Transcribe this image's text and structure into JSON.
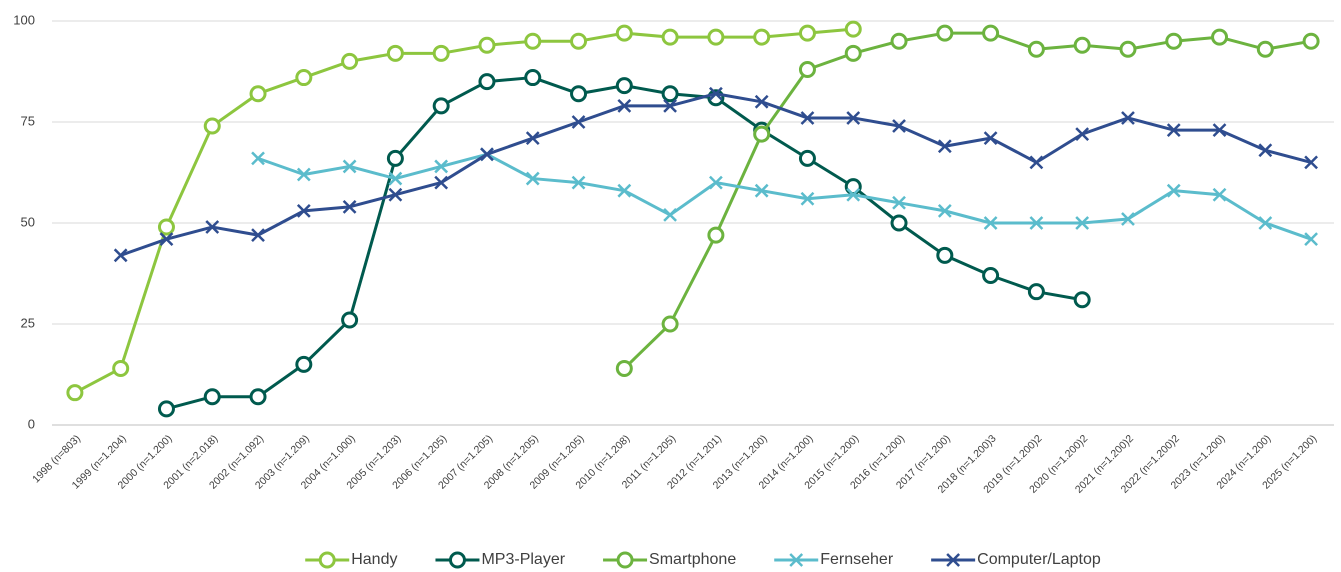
{
  "chart_data": {
    "type": "line",
    "categories": [
      "1998 (n=803)",
      "1999 (n=1.204)",
      "2000 (n=1.200)",
      "2001 (n=2.018)",
      "2002 (n=1.092)",
      "2003 (n=1.209)",
      "2004 (n=1.000)",
      "2005 (n=1.203)",
      "2006 (n=1.205)",
      "2007 (n=1.205)",
      "2008 (n=1.205)",
      "2009 (n=1.205)",
      "2010 (n=1.208)",
      "2011 (n=1.205)",
      "2012 (n=1.201)",
      "2013 (n=1.200)",
      "2014 (n=1.200)",
      "2015 (n=1.200)",
      "2016 (n=1.200)",
      "2017 (n=1.200)",
      "2018 (n=1.200)3",
      "2019 (n=1.200)2",
      "2020 (n=1.200)2",
      "2021 (n=1.200)2",
      "2022 (n=1.200)2",
      "2023 (n=1.200)",
      "2024 (n=1.200)",
      "2025 (n=1.200)"
    ],
    "series": [
      {
        "name": "Handy",
        "color": "#8dc63f",
        "marker": "circle",
        "values": [
          8,
          14,
          49,
          74,
          82,
          86,
          90,
          92,
          92,
          94,
          95,
          95,
          97,
          96,
          96,
          96,
          97,
          98,
          null,
          null,
          null,
          null,
          null,
          null,
          null,
          null,
          null,
          null
        ]
      },
      {
        "name": "MP3-Player",
        "color": "#005a4e",
        "marker": "circle",
        "values": [
          null,
          null,
          4,
          7,
          7,
          15,
          26,
          66,
          79,
          85,
          86,
          82,
          84,
          82,
          81,
          73,
          66,
          59,
          50,
          42,
          37,
          33,
          31,
          null,
          null,
          null,
          null,
          null
        ]
      },
      {
        "name": "Smartphone",
        "color": "#6cb33f",
        "marker": "circle",
        "values": [
          null,
          null,
          null,
          null,
          null,
          null,
          null,
          null,
          null,
          null,
          null,
          null,
          14,
          25,
          47,
          72,
          88,
          92,
          95,
          97,
          97,
          93,
          94,
          93,
          95,
          96,
          93,
          95
        ]
      },
      {
        "name": "Fernseher",
        "color": "#5bbccc",
        "marker": "x",
        "values": [
          null,
          null,
          null,
          null,
          66,
          62,
          64,
          61,
          64,
          67,
          61,
          60,
          58,
          52,
          60,
          58,
          56,
          57,
          55,
          53,
          50,
          50,
          50,
          51,
          58,
          57,
          50,
          46
        ]
      },
      {
        "name": "Computer/Laptop",
        "color": "#2f4d8f",
        "marker": "x",
        "values": [
          null,
          42,
          46,
          49,
          47,
          53,
          54,
          57,
          60,
          67,
          71,
          75,
          79,
          79,
          82,
          80,
          76,
          76,
          74,
          69,
          71,
          65,
          72,
          76,
          73,
          73,
          68,
          65
        ]
      }
    ],
    "ylim": [
      0,
      100
    ],
    "yticks": [
      0,
      25,
      50,
      75,
      100
    ],
    "grid": true,
    "legend": "bottom"
  }
}
